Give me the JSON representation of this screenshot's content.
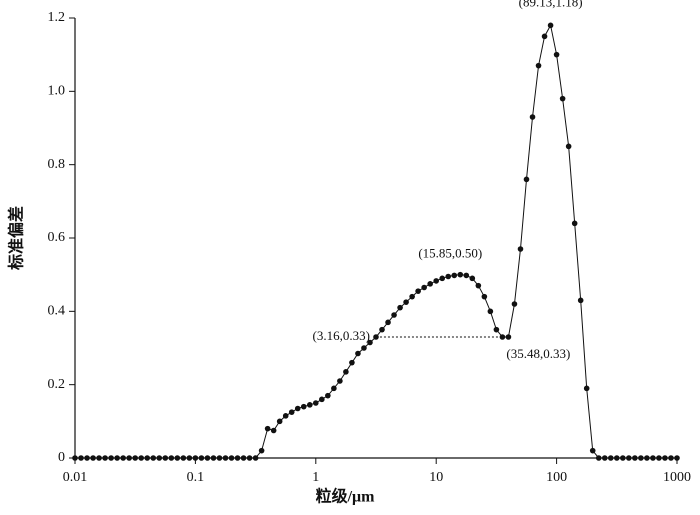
{
  "chart_data": {
    "type": "line",
    "xlabel": "粒级/μm",
    "ylabel": "标准偏差",
    "xscale": "log",
    "xlim": [
      0.01,
      1000
    ],
    "xticks": [
      0.01,
      0.1,
      1,
      10,
      100,
      1000
    ],
    "ylim": [
      0,
      1.2
    ],
    "yticks": [
      0,
      0.2,
      0.4,
      0.6,
      0.8,
      {
        "value": 1.0,
        "label": "1.0"
      },
      1.2
    ],
    "x": [
      0.01,
      0.01122,
      0.01259,
      0.01413,
      0.01585,
      0.01778,
      0.01995,
      0.02239,
      0.02512,
      0.02818,
      0.03162,
      0.03548,
      0.03981,
      0.04467,
      0.05012,
      0.05623,
      0.0631,
      0.07079,
      0.07943,
      0.08913,
      0.1,
      0.1122,
      0.1259,
      0.1413,
      0.1585,
      0.1778,
      0.1995,
      0.2239,
      0.2512,
      0.2818,
      0.3162,
      0.3548,
      0.3981,
      0.4467,
      0.5012,
      0.5623,
      0.631,
      0.7079,
      0.7943,
      0.8913,
      1,
      1.122,
      1.259,
      1.413,
      1.585,
      1.778,
      1.995,
      2.239,
      2.512,
      2.818,
      3.162,
      3.548,
      3.981,
      4.467,
      5.012,
      5.623,
      6.31,
      7.079,
      7.943,
      8.913,
      10,
      11.22,
      12.59,
      14.13,
      15.85,
      17.78,
      19.95,
      22.39,
      25.12,
      28.18,
      31.62,
      35.48,
      39.81,
      44.67,
      50.12,
      56.23,
      63.1,
      70.79,
      79.43,
      89.13,
      100,
      112.2,
      125.9,
      141.3,
      158.5,
      177.8,
      199.5,
      223.9,
      251.2,
      281.8,
      316.2,
      354.8,
      398.1,
      446.7,
      501.2,
      562.3,
      631,
      707.9,
      794.3,
      891.3,
      1000
    ],
    "series": [
      {
        "color": "#111111",
        "values": [
          0,
          0,
          0,
          0,
          0,
          0,
          0,
          0,
          0,
          0,
          0,
          0,
          0,
          0,
          0,
          0,
          0,
          0,
          0,
          0,
          0,
          0,
          0,
          0,
          0,
          0,
          0,
          0,
          0,
          0,
          0,
          0.02,
          0.08,
          0.075,
          0.1,
          0.115,
          0.125,
          0.135,
          0.14,
          0.145,
          0.15,
          0.16,
          0.17,
          0.19,
          0.21,
          0.235,
          0.26,
          0.285,
          0.3,
          0.315,
          0.33,
          0.35,
          0.37,
          0.39,
          0.41,
          0.425,
          0.44,
          0.455,
          0.465,
          0.475,
          0.483,
          0.49,
          0.495,
          0.498,
          0.5,
          0.498,
          0.49,
          0.47,
          0.44,
          0.4,
          0.35,
          0.33,
          0.33,
          0.42,
          0.57,
          0.76,
          0.93,
          1.07,
          1.15,
          1.18,
          1.1,
          0.98,
          0.85,
          0.64,
          0.43,
          0.19,
          0.02,
          0,
          0,
          0,
          0,
          0,
          0,
          0,
          0,
          0,
          0,
          0,
          0,
          0,
          0
        ]
      }
    ],
    "annotations": [
      {
        "text": "(89.13,1.18)",
        "x": 89.13,
        "y": 1.18
      },
      {
        "text": "(15.85,0.50)",
        "x": 15.85,
        "y": 0.5
      },
      {
        "text": "(3.16,0.33)",
        "x": 3.16,
        "y": 0.33
      },
      {
        "text": "(35.48,0.33)",
        "x": 35.48,
        "y": 0.33
      }
    ],
    "reference_line": {
      "x": [
        3.16,
        35.48
      ],
      "y": 0.33
    }
  }
}
